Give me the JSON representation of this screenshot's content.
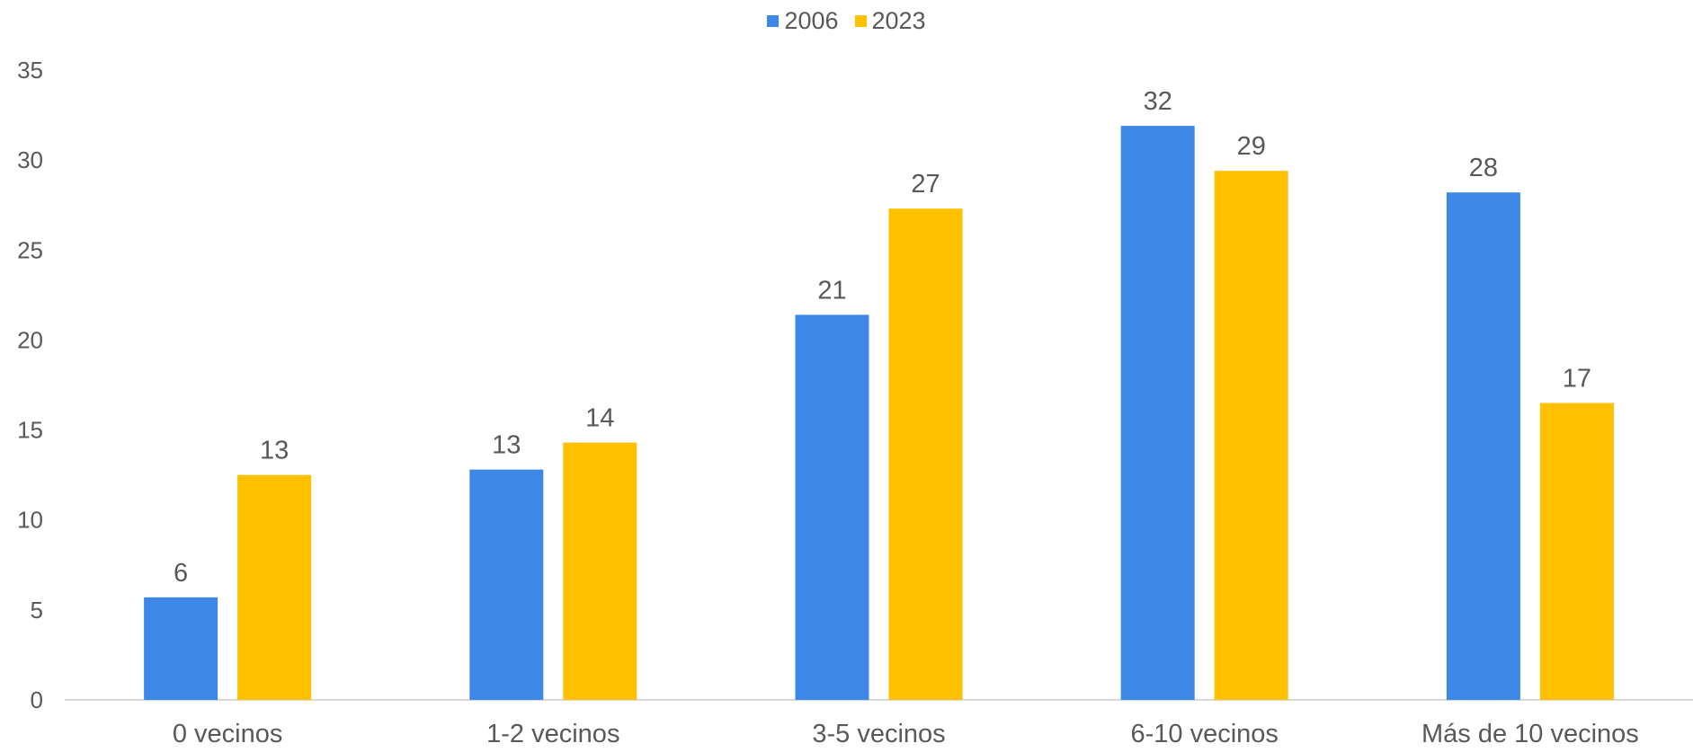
{
  "chart_data": {
    "type": "bar",
    "categories": [
      "0 vecinos",
      "1-2 vecinos",
      "3-5 vecinos",
      "6-10 vecinos",
      "Más de 10 vecinos"
    ],
    "series": [
      {
        "name": "2006",
        "values": [
          5.7,
          12.8,
          21.4,
          31.9,
          28.2
        ],
        "labels": [
          "6",
          "13",
          "21",
          "32",
          "28"
        ],
        "color": "#3d88e6"
      },
      {
        "name": "2023",
        "values": [
          12.5,
          14.3,
          27.3,
          29.4,
          16.5
        ],
        "labels": [
          "13",
          "14",
          "27",
          "29",
          "17"
        ],
        "color": "#ffc000"
      }
    ],
    "ylim": [
      0,
      35
    ],
    "yticks": [
      0,
      5,
      10,
      15,
      20,
      25,
      30,
      35
    ],
    "grid": false,
    "legend_position": "top-center",
    "title": "",
    "xlabel": "",
    "ylabel": ""
  }
}
